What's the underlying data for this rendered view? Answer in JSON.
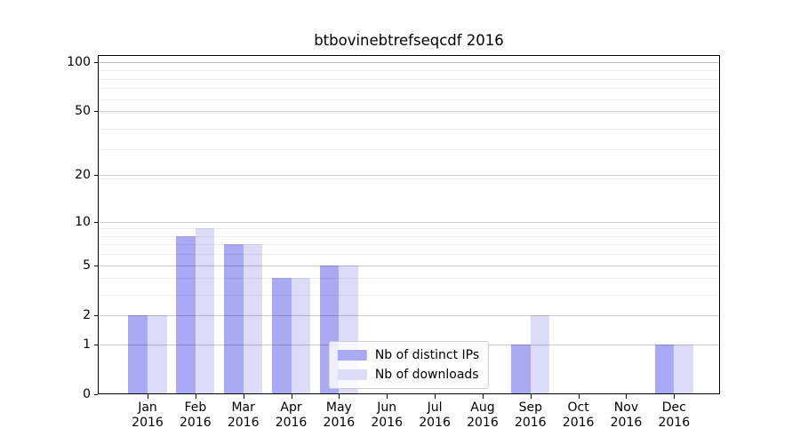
{
  "figure": {
    "title": "btbovinebtrefseqcdf 2016",
    "background_color": "#ffffff"
  },
  "chart_data": {
    "type": "bar",
    "title": "btbovinebtrefseqcdf 2016",
    "categories": [
      "Jan",
      "Feb",
      "Mar",
      "Apr",
      "May",
      "Jun",
      "Jul",
      "Aug",
      "Sep",
      "Oct",
      "Nov",
      "Dec"
    ],
    "category_year": "2016",
    "series": [
      {
        "name": "Nb of distinct IPs",
        "color": "#a9a9f4",
        "values": [
          2,
          8,
          7,
          4,
          5,
          0,
          0,
          0,
          1,
          0,
          0,
          1
        ]
      },
      {
        "name": "Nb of downloads",
        "color": "#dcdcf9",
        "values": [
          2,
          9,
          7,
          4,
          5,
          0,
          0,
          0,
          2,
          0,
          0,
          1
        ]
      }
    ],
    "xlabel": "",
    "ylabel": "",
    "yscale": "log1p",
    "yticks": [
      0,
      1,
      2,
      5,
      10,
      20,
      50,
      100
    ],
    "minor_gridline_values": [
      3,
      4,
      6,
      7,
      8,
      9,
      19,
      29,
      39,
      49,
      59,
      69,
      79,
      89,
      99
    ],
    "ylim": [
      0,
      110
    ],
    "grid": true,
    "legend_position": "lower center",
    "axis_color": "#000000",
    "major_grid_color": "#cccccc",
    "minor_grid_color": "#ededed"
  }
}
